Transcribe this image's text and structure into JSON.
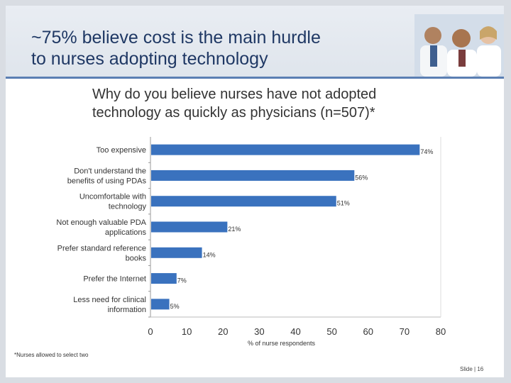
{
  "slide": {
    "title_lines": [
      "~75% believe cost is the main hurdle",
      "to nurses adopting technology"
    ],
    "question_lines": [
      "Why do you believe nurses have not adopted",
      "technology as quickly as physicians (n=507)*"
    ],
    "footnote": "*Nurses allowed to select two",
    "slide_number": "Slide | 16"
  },
  "chart_data": {
    "type": "bar",
    "orientation": "horizontal",
    "title": "Why do you believe nurses have not adopted technology as quickly as physicians (n=507)*",
    "xlabel": "% of nurse respondents",
    "ylabel": "",
    "xlim": [
      0,
      80
    ],
    "xticks": [
      0,
      10,
      20,
      30,
      40,
      50,
      60,
      70,
      80
    ],
    "grid": false,
    "bar_color": "#3a72be",
    "categories": [
      [
        "Too expensive"
      ],
      [
        "Don't understand the",
        "benefits of using PDAs"
      ],
      [
        "Uncomfortable with",
        "technology"
      ],
      [
        "Not enough valuable PDA",
        "applications"
      ],
      [
        "Prefer standard reference",
        "books"
      ],
      [
        "Prefer the Internet"
      ],
      [
        "Less need for clinical",
        "information"
      ]
    ],
    "values": [
      74,
      56,
      51,
      21,
      14,
      7,
      5
    ],
    "value_labels": [
      "74%",
      "56%",
      "51%",
      "21%",
      "14%",
      "7%",
      "5%"
    ]
  }
}
